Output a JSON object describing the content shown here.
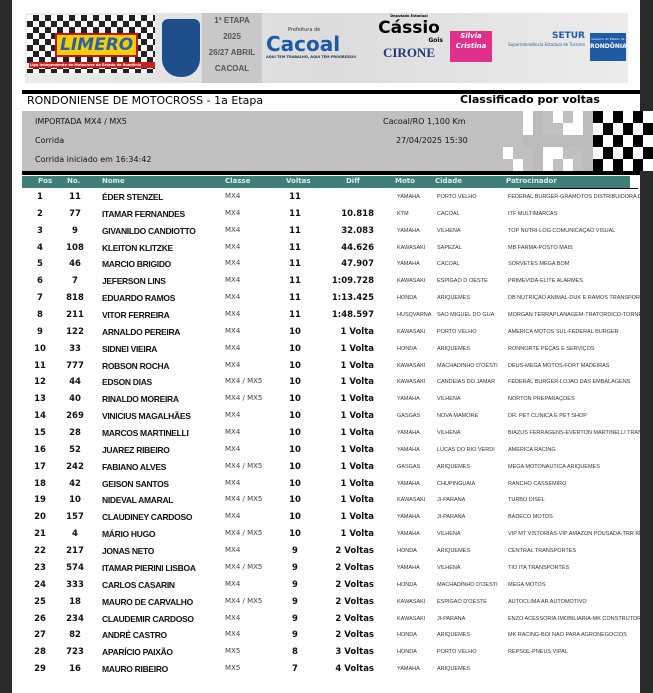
{
  "banner": {
    "limero": "LIMERO",
    "liga": "Liga Independente de Motocross do Estado de Rondônia",
    "etapa": "1ª ETAPA",
    "ano": "2025",
    "datas": "26/27 ABRIL",
    "cidade": "CACOAL",
    "prefeitura": "Prefeitura de",
    "cacoal": "Cacoal",
    "slogan": "AQUI TEM TRABALHO, AQUI TEM PROGRESSO!",
    "cassio_top": "Deputado Estadual",
    "cassio": "Cássio",
    "gois": "Gois",
    "cirone": "CIRONE",
    "silvia": "Silvia Cristina",
    "setur": "SETUR",
    "setur_sub": "Superintendência Estadual de Turismo",
    "gov": "Governo do Estado de",
    "rondonia": "RONDÔNIA"
  },
  "header": {
    "title": "RONDONIENSE DE MOTOCROSS - 1a Etapa",
    "subtitle": "Classificado por voltas",
    "category": "IMPORTADA MX4 / MX5",
    "location": "Cacoal/RO 1,100 Km",
    "session": "Corrida",
    "datetime": "27/04/2025 15:30",
    "started": "Corrida iniciado em 16:34:42"
  },
  "columns": [
    "Pos",
    "No.",
    "Nome",
    "Classe",
    "Voltas",
    "Diff",
    "Moto",
    "Cidade",
    "Patrocinador"
  ],
  "rows": [
    [
      "1",
      "11",
      "ÉDER STENZEL",
      "MX4",
      "11",
      "",
      "YAMAHA",
      "PORTO VELHO",
      "FEDERAL BURGER-GRAMOTOS DISTRIBUIDORA DE F"
    ],
    [
      "2",
      "77",
      "ITAMAR FERNANDES",
      "MX4",
      "11",
      "10.818",
      "KTM",
      "CACOAL",
      "ITF MULTIMARCAS"
    ],
    [
      "3",
      "9",
      "GIVANILDO CANDIOTTO",
      "MX4",
      "11",
      "32.083",
      "YAMAHA",
      "VILHENA",
      "TOP NUTRI-LOG COMUNICAÇÃO VISUAL"
    ],
    [
      "4",
      "108",
      "KLEITON KLITZKE",
      "MX4",
      "11",
      "44.626",
      "KAWASAKI",
      "SAPEZAL",
      "MB FARMA-POSTO MAIS"
    ],
    [
      "5",
      "46",
      "MARCIO BRIGIDO",
      "MX4",
      "11",
      "47.907",
      "YAMAHA",
      "CACOAL",
      "SORVETES MEGA BOM"
    ],
    [
      "6",
      "7",
      "JEFERSON LINS",
      "MX4",
      "11",
      "1:09.728",
      "KAWASAKI",
      "ESPIGÃO D´OESTE",
      "PRIMEVIDA-ELITE ALARMES"
    ],
    [
      "7",
      "818",
      "EDUARDO RAMOS",
      "MX4",
      "11",
      "1:13.425",
      "HONDA",
      "ARIQUEMES",
      "DB NUTRIÇÃO ANIMAL-DUK E RAMOS TRANSPORTES"
    ],
    [
      "8",
      "211",
      "VITOR FERREIRA",
      "MX4",
      "11",
      "1:48.597",
      "HUSQVARNA",
      "SÃO MIGUEL DO GUA",
      "MORGAN TERRAPLANAGEM-TRATORDICO-TORNEARI"
    ],
    [
      "9",
      "122",
      "ARNALDO PEREIRA",
      "MX4",
      "10",
      "1 Volta",
      "KAWASAKI",
      "PORTO VELHO",
      "AMERICA MOTOS SUL-FEDERAL BURGER"
    ],
    [
      "10",
      "33",
      "SIDNEI VIEIRA",
      "MX4",
      "10",
      "1 Volta",
      "HONDA",
      "ARIQUEMES",
      "RONNORTE PEÇAS E SERVIÇOS"
    ],
    [
      "11",
      "777",
      "ROBSON ROCHA",
      "MX4",
      "10",
      "1 Volta",
      "KAWASAKI",
      "MACHADINHO D'OESTI",
      "DEUS-MEGA MOTOS-FORT MADEIRAS"
    ],
    [
      "12",
      "44",
      "EDSON DIAS",
      "MX4 / MX5",
      "10",
      "1 Volta",
      "KAWASAKI",
      "CANDEIAS DO JAMAR",
      "FEDERAL BURGER-LOJÃO DAS EMBALAGENS"
    ],
    [
      "13",
      "40",
      "RINALDO MOREIRA",
      "MX4 / MX5",
      "10",
      "1 Volta",
      "YAMAHA",
      "VILHENA",
      "NORTON PREPARAÇÕES"
    ],
    [
      "14",
      "269",
      "VINICIUS MAGALHÃES",
      "MX4",
      "10",
      "1 Volta",
      "GASGAS",
      "NOVA MAMORÉ",
      "DR. PET CLÍNICA E PET SHOP"
    ],
    [
      "15",
      "28",
      "MARCOS MARTINELLI",
      "MX4",
      "10",
      "1 Volta",
      "YAMAHA",
      "VILHENA",
      "BIAZUS FERRAGENS-EVERTON MARTINELLI TRANSPI"
    ],
    [
      "16",
      "52",
      "JUAREZ RIBEIRO",
      "MX4",
      "10",
      "1 Volta",
      "YAMAHA",
      "LUCAS DO RIO VERDI",
      "AMERICA RACING"
    ],
    [
      "17",
      "242",
      "FABIANO ALVES",
      "MX4 / MX5",
      "10",
      "1 Volta",
      "GASGAS",
      "ARIQUEMES",
      "MEGA MOTONÁUTICA ARIQUEMES"
    ],
    [
      "18",
      "42",
      "GEISON SANTOS",
      "MX4",
      "10",
      "1 Volta",
      "YAMAHA",
      "CHUPINGUAIA",
      "RANCHO CASSEMIRO"
    ],
    [
      "19",
      "10",
      "NIDEVAL AMARAL",
      "MX4 / MX5",
      "10",
      "1 Volta",
      "KAWASAKI",
      "JI-PARANÁ",
      "TURBO DISEL"
    ],
    [
      "20",
      "157",
      "CLAUDINEY CARDOSO",
      "MX4",
      "10",
      "1 Volta",
      "YAMAHA",
      "JI-PARANÁ",
      "BADECO MOTOS"
    ],
    [
      "21",
      "4",
      "MÁRIO HUGO",
      "MX4 / MX5",
      "10",
      "1 Volta",
      "YAMAHA",
      "VILHENA",
      "VIP MT VISTORIAS-VIP AMAZON POUSADA-TRR KRU"
    ],
    [
      "22",
      "217",
      "JONAS NETO",
      "MX4",
      "9",
      "2 Voltas",
      "HONDA",
      "ARIQUEMES",
      "CENTRAL TRANSPORTES"
    ],
    [
      "23",
      "574",
      "ITAMAR PIERINI LISBOA",
      "MX4 / MX5",
      "9",
      "2 Voltas",
      "YAMAHA",
      "VILHENA",
      "TIO ITA TRANSPORTES"
    ],
    [
      "24",
      "333",
      "CARLOS CASARIN",
      "MX4",
      "9",
      "2 Voltas",
      "HONDA",
      "MACHADINHO D'OESTI",
      "MEGA MOTOS"
    ],
    [
      "25",
      "18",
      "MAURO DE CARVALHO",
      "MX4 / MX5",
      "9",
      "2 Voltas",
      "KAWASAKI",
      "ESPIGÃO D'OESTE",
      "AUTOCLIMA AR AUTOMOTIVO"
    ],
    [
      "26",
      "234",
      "CLAUDEMIR CARDOSO",
      "MX4",
      "9",
      "2 Voltas",
      "KAWASAKI",
      "JI-PARANÁ",
      "ENZO ACESSÓRIA IMOBILIÁRIA-MK CONSTRUTORA"
    ],
    [
      "27",
      "82",
      "ANDRÉ CASTRO",
      "MX4",
      "9",
      "2 Voltas",
      "HONDA",
      "ARIQUEMES",
      "MK RACING-BOI NÃO PARA AGRONEGÓCIOS"
    ],
    [
      "28",
      "723",
      "APARÍCIO PAIXÃO",
      "MX5",
      "8",
      "3 Voltas",
      "HONDA",
      "PORTO VELHO",
      "REPSOL-PNEUS VIPAL"
    ],
    [
      "29",
      "16",
      "MAURO RIBEIRO",
      "MX5",
      "7",
      "4 Voltas",
      "YAMAHA",
      "ARIQUEMES",
      ""
    ]
  ],
  "colors": {
    "header_bar": "#3f7f7a",
    "info_bg": "#c0c0c0"
  }
}
